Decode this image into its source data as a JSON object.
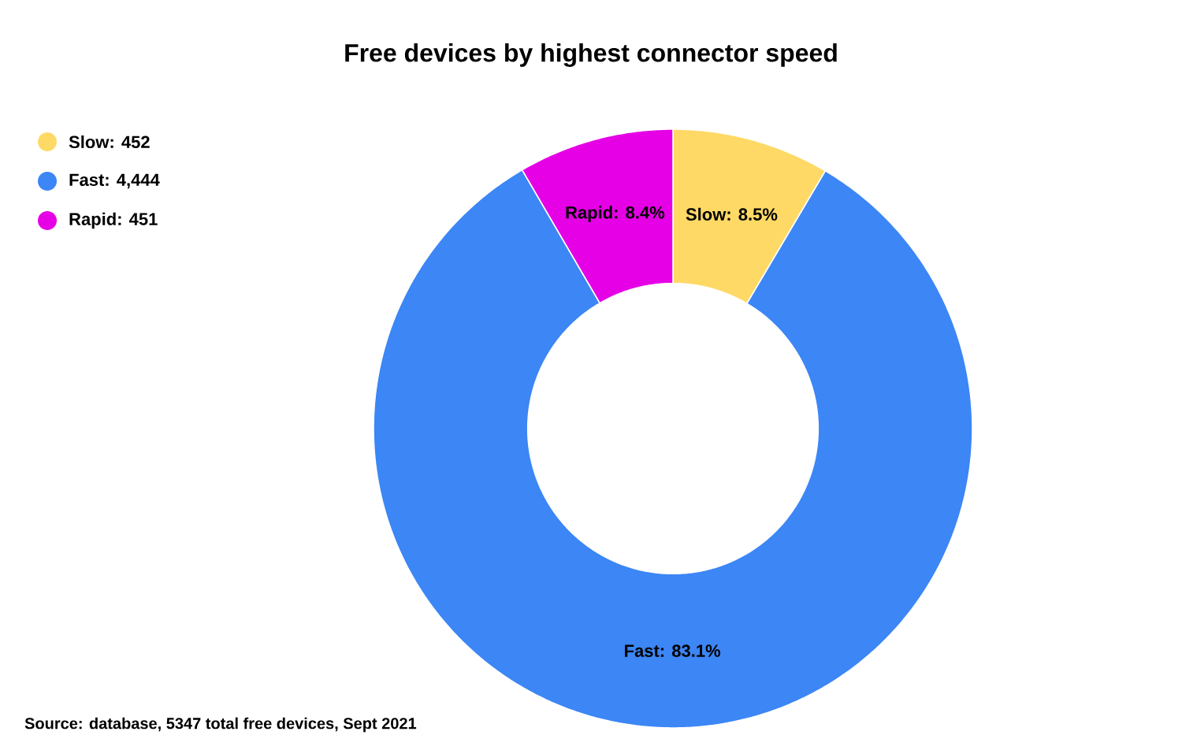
{
  "chart_data": {
    "type": "donut",
    "title": "Free devices by highest connector speed",
    "categories": [
      "Slow: 452",
      "Fast: 4,444",
      "Rapid: 451"
    ],
    "values": [
      8.5,
      83.1,
      8.4
    ],
    "colors": [
      "#ffd966",
      "#3c86f5",
      "#e600e6"
    ],
    "value_labels": [
      "Slow: 8.5%",
      "Fast: 83.1%",
      "Rapid: 8.4%"
    ],
    "legend": "top left",
    "annotations": [
      "Source: database, 5347 total free devices, Sept 2021"
    ]
  }
}
